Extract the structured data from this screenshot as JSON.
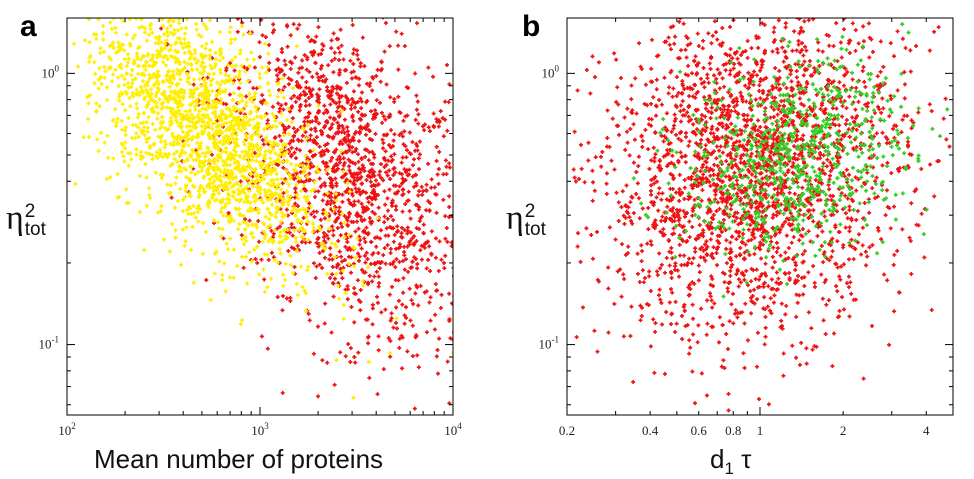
{
  "chart_data": [
    {
      "panel": "a",
      "type": "scatter",
      "title": "",
      "xlabel": "Mean number of proteins",
      "ylabel_symbol": "η",
      "ylabel_sup": "2",
      "ylabel_sub": "tot",
      "xscale": "log",
      "yscale": "log",
      "xlim": [
        100,
        10000
      ],
      "ylim": [
        0.055,
        1.6
      ],
      "xticks": [
        {
          "value": 100,
          "label": "10",
          "exp": "2"
        },
        {
          "value": 1000,
          "label": "10",
          "exp": "3"
        },
        {
          "value": 10000,
          "label": "10",
          "exp": "4"
        }
      ],
      "yticks": [
        {
          "value": 0.1,
          "label": "10",
          "exp": "-1"
        },
        {
          "value": 1,
          "label": "10",
          "exp": "0"
        }
      ],
      "series": [
        {
          "name": "red",
          "color": "#ee1111",
          "x_center": 2800,
          "x_spread": 0.32,
          "y_center": 0.42,
          "slope": -0.45,
          "y_spread": 0.28,
          "n": 1600
        },
        {
          "name": "yellow",
          "color": "#ffee00",
          "x_center": 520,
          "x_spread": 0.3,
          "y_center": 0.62,
          "slope": -0.5,
          "y_spread": 0.2,
          "n": 1900
        }
      ]
    },
    {
      "panel": "b",
      "type": "scatter",
      "title": "",
      "xlabel": "d",
      "xlabel_sub": "1",
      "xlabel_rest": " τ",
      "ylabel_symbol": "η",
      "ylabel_sup": "2",
      "ylabel_sub": "tot",
      "xscale": "log",
      "yscale": "log",
      "xlim": [
        0.2,
        5
      ],
      "ylim": [
        0.055,
        1.6
      ],
      "xticks": [
        {
          "value": 0.2,
          "label": "0.2"
        },
        {
          "value": 0.4,
          "label": "0.4"
        },
        {
          "value": 0.6,
          "label": "0.6"
        },
        {
          "value": 0.8,
          "label": "0.8"
        },
        {
          "value": 1,
          "label": "1"
        },
        {
          "value": 2,
          "label": "2"
        },
        {
          "value": 4,
          "label": "4"
        }
      ],
      "yticks": [
        {
          "value": 0.1,
          "label": "10",
          "exp": "-1"
        },
        {
          "value": 1,
          "label": "10",
          "exp": "0"
        }
      ],
      "series": [
        {
          "name": "red",
          "color": "#ee1111",
          "x_center": 0.95,
          "x_spread": 0.27,
          "y_center": 0.45,
          "slope": 0.15,
          "y_spread": 0.3,
          "n": 2400
        },
        {
          "name": "green",
          "color": "#33cc22",
          "x_center": 1.35,
          "x_spread": 0.2,
          "y_center": 0.5,
          "slope": 0.2,
          "y_spread": 0.17,
          "n": 700
        }
      ]
    }
  ]
}
